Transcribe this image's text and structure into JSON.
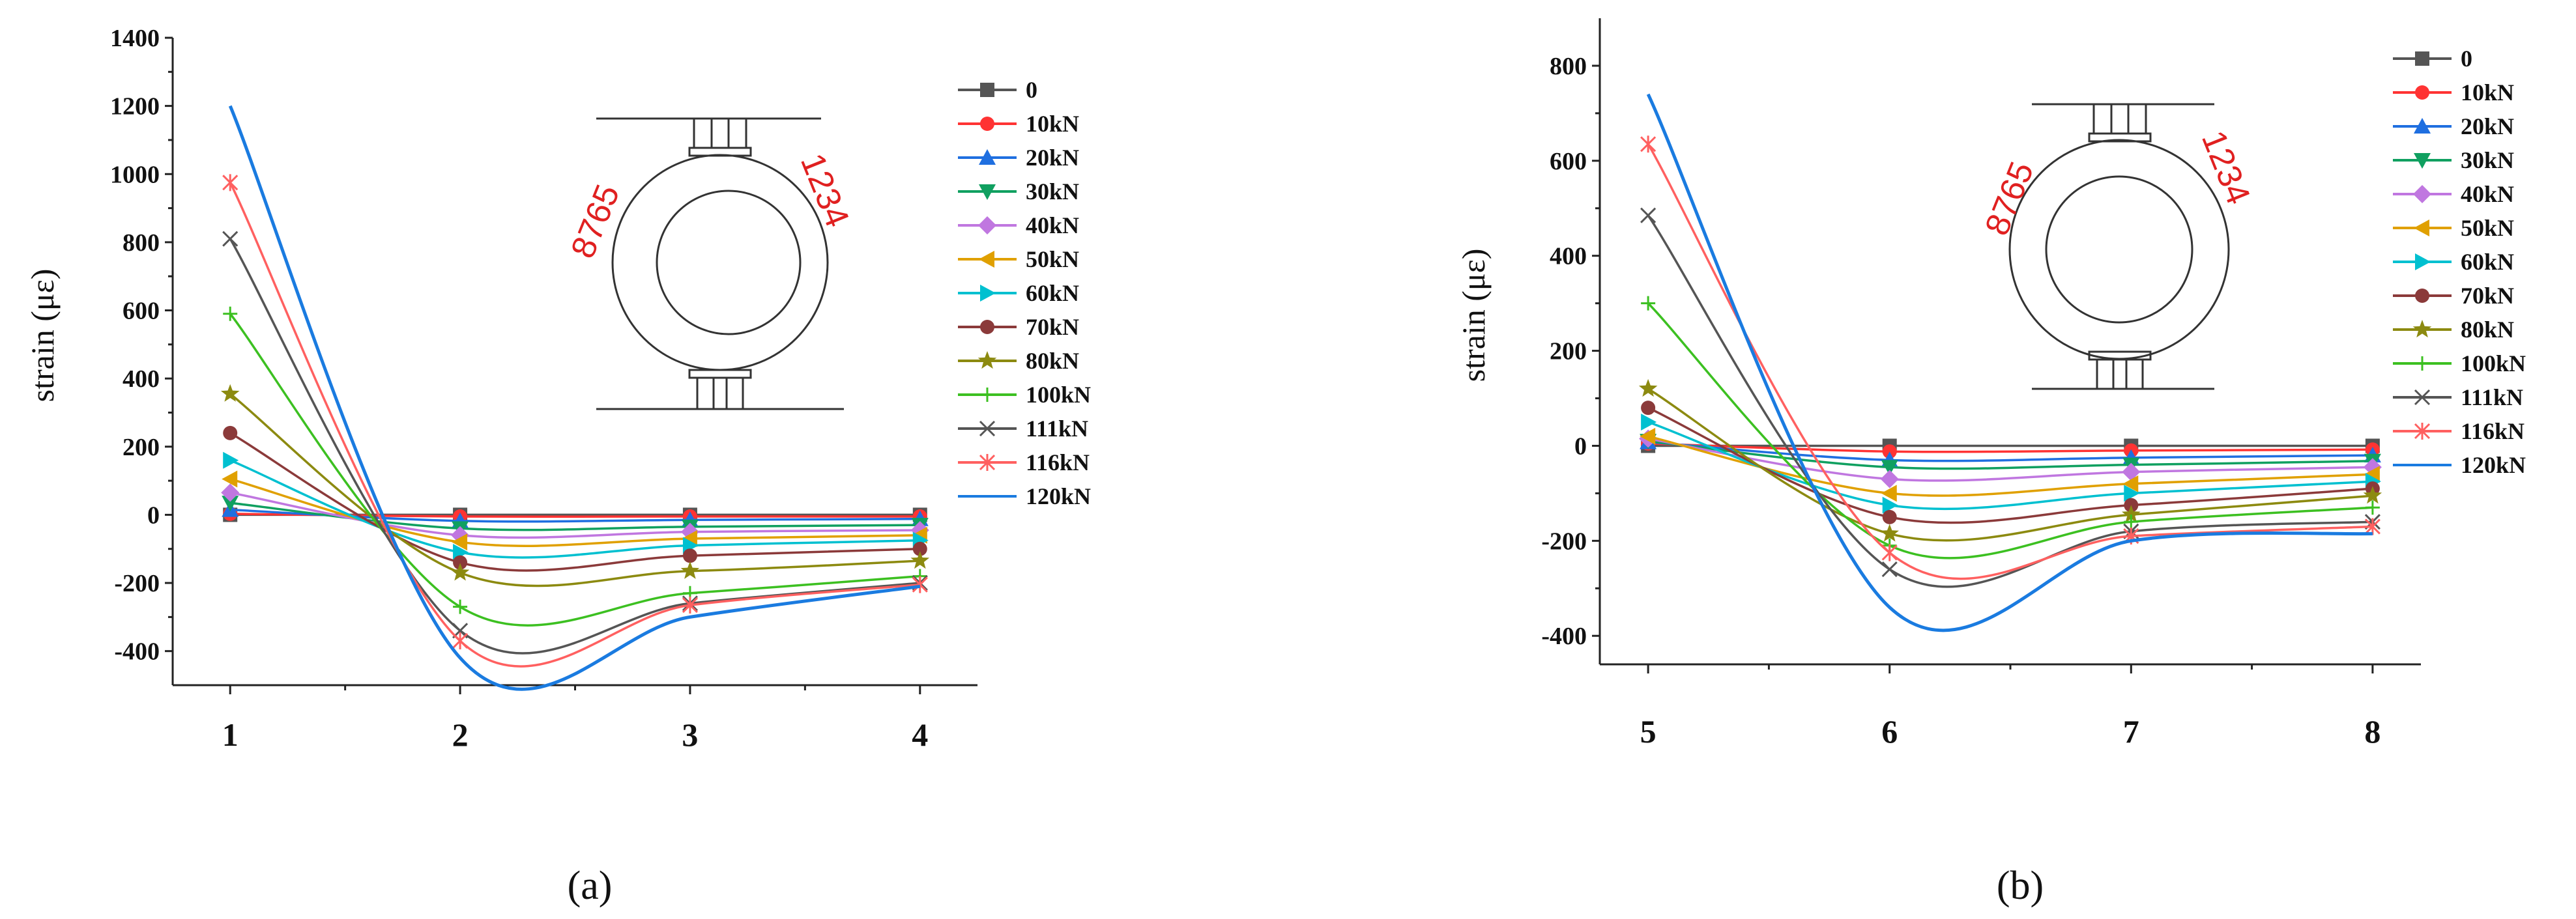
{
  "chart_data": [
    {
      "id": "a",
      "type": "line",
      "panel_label": "(a)",
      "title": "",
      "xlabel": "",
      "ylabel": "strain (με)",
      "categories": [
        "1",
        "2",
        "3",
        "4"
      ],
      "x": [
        1,
        2,
        3,
        4
      ],
      "xlim": [
        0.75,
        4.25
      ],
      "ylim": [
        -500,
        1400
      ],
      "yticks": [
        -400,
        -200,
        0,
        200,
        400,
        600,
        800,
        1000,
        1200,
        1400
      ],
      "legend_position": "right",
      "inset_labels": {
        "left": "8765",
        "right": "1234"
      },
      "series": [
        {
          "name": "0",
          "color": "#555555",
          "marker": "square",
          "values": [
            0,
            0,
            0,
            0
          ]
        },
        {
          "name": "10kN",
          "color": "#ff3333",
          "marker": "circle",
          "values": [
            3,
            -5,
            -5,
            -5
          ]
        },
        {
          "name": "20kN",
          "color": "#1f6fe0",
          "marker": "triangle-up",
          "values": [
            15,
            -18,
            -15,
            -12
          ]
        },
        {
          "name": "30kN",
          "color": "#10a060",
          "marker": "triangle-down",
          "values": [
            35,
            -40,
            -35,
            -30
          ]
        },
        {
          "name": "40kN",
          "color": "#c077e0",
          "marker": "diamond",
          "values": [
            65,
            -60,
            -50,
            -45
          ]
        },
        {
          "name": "50kN",
          "color": "#e0a000",
          "marker": "triangle-left",
          "values": [
            105,
            -80,
            -70,
            -60
          ]
        },
        {
          "name": "60kN",
          "color": "#00c0d0",
          "marker": "triangle-right",
          "values": [
            160,
            -110,
            -90,
            -75
          ]
        },
        {
          "name": "70kN",
          "color": "#8b3a3a",
          "marker": "circle",
          "values": [
            240,
            -140,
            -120,
            -100
          ]
        },
        {
          "name": "80kN",
          "color": "#8c8a10",
          "marker": "star",
          "values": [
            355,
            -170,
            -165,
            -135
          ]
        },
        {
          "name": "100kN",
          "color": "#3cc021",
          "marker": "plus",
          "values": [
            590,
            -270,
            -230,
            -180
          ]
        },
        {
          "name": "111kN",
          "color": "#555555",
          "marker": "x",
          "values": [
            810,
            -340,
            -260,
            -200
          ]
        },
        {
          "name": "116kN",
          "color": "#ff6060",
          "marker": "asterisk",
          "values": [
            975,
            -370,
            -265,
            -205
          ]
        },
        {
          "name": "120kN",
          "color": "#1a7be0",
          "marker": "none",
          "values": [
            1200,
            -420,
            -300,
            -210
          ]
        }
      ]
    },
    {
      "id": "b",
      "type": "line",
      "panel_label": "(b)",
      "title": "",
      "xlabel": "",
      "ylabel": "strain (με)",
      "categories": [
        "5",
        "6",
        "7",
        "8"
      ],
      "x": [
        5,
        6,
        7,
        8
      ],
      "xlim": [
        4.8,
        8.2
      ],
      "ylim": [
        -460,
        900
      ],
      "yticks": [
        -400,
        -200,
        0,
        200,
        400,
        600,
        800
      ],
      "legend_position": "right",
      "inset_labels": {
        "left": "8765",
        "right": "1234"
      },
      "series": [
        {
          "name": "0",
          "color": "#555555",
          "marker": "square",
          "values": [
            0,
            0,
            0,
            0
          ]
        },
        {
          "name": "10kN",
          "color": "#ff3333",
          "marker": "circle",
          "values": [
            5,
            -12,
            -10,
            -8
          ]
        },
        {
          "name": "20kN",
          "color": "#1f6fe0",
          "marker": "triangle-up",
          "values": [
            8,
            -30,
            -25,
            -20
          ]
        },
        {
          "name": "30kN",
          "color": "#10a060",
          "marker": "triangle-down",
          "values": [
            10,
            -45,
            -40,
            -32
          ]
        },
        {
          "name": "40kN",
          "color": "#c077e0",
          "marker": "diamond",
          "values": [
            15,
            -70,
            -55,
            -45
          ]
        },
        {
          "name": "50kN",
          "color": "#e0a000",
          "marker": "triangle-left",
          "values": [
            20,
            -100,
            -80,
            -60
          ]
        },
        {
          "name": "60kN",
          "color": "#00c0d0",
          "marker": "triangle-right",
          "values": [
            50,
            -125,
            -100,
            -75
          ]
        },
        {
          "name": "70kN",
          "color": "#8b3a3a",
          "marker": "circle",
          "values": [
            80,
            -150,
            -125,
            -90
          ]
        },
        {
          "name": "80kN",
          "color": "#8c8a10",
          "marker": "star",
          "values": [
            120,
            -185,
            -145,
            -105
          ]
        },
        {
          "name": "100kN",
          "color": "#3cc021",
          "marker": "plus",
          "values": [
            300,
            -210,
            -160,
            -130
          ]
        },
        {
          "name": "111kN",
          "color": "#555555",
          "marker": "x",
          "values": [
            485,
            -260,
            -180,
            -160
          ]
        },
        {
          "name": "116kN",
          "color": "#ff6060",
          "marker": "asterisk",
          "values": [
            635,
            -225,
            -190,
            -170
          ]
        },
        {
          "name": "120kN",
          "color": "#1a7be0",
          "marker": "none",
          "values": [
            740,
            -340,
            -200,
            -185
          ]
        }
      ]
    }
  ]
}
